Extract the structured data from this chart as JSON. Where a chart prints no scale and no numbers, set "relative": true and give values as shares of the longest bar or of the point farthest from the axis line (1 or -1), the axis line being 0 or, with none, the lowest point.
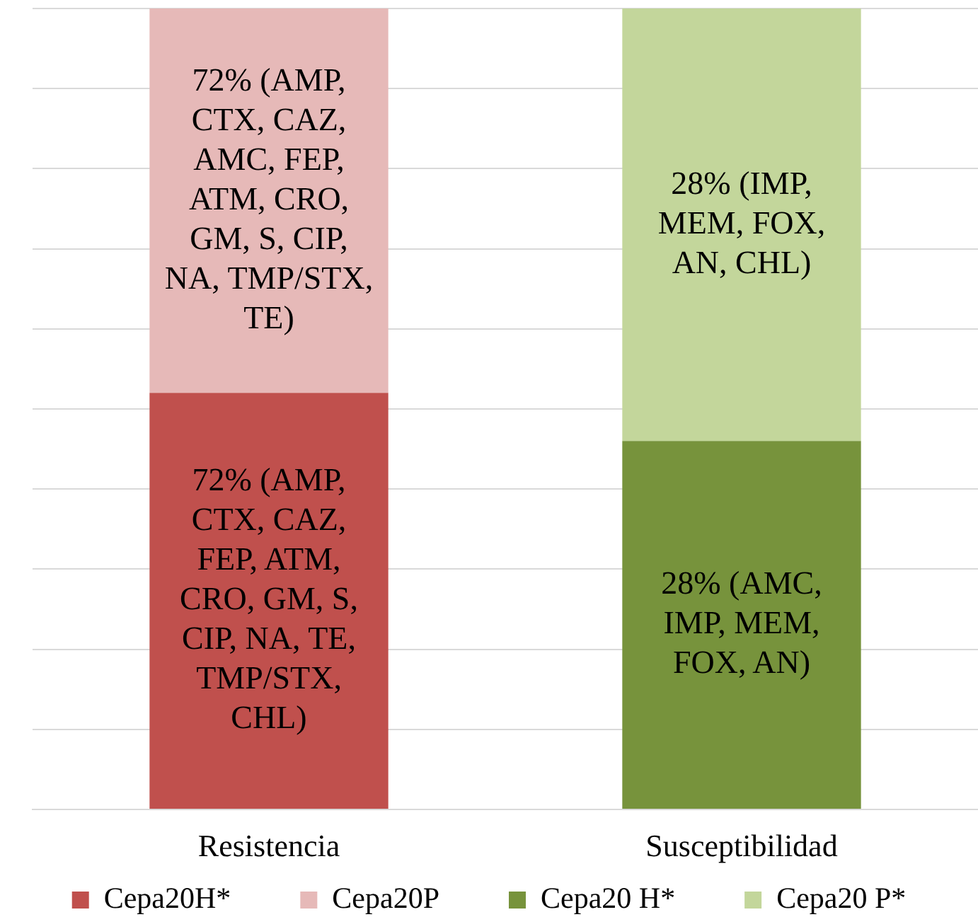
{
  "chart_data": {
    "type": "bar",
    "stacked": true,
    "relative": true,
    "categories": [
      "Resistencia",
      "Susceptibilidad"
    ],
    "series": [
      {
        "name": "Cepa20H*",
        "color": "#c0504d",
        "values": [
          0.52,
          null
        ]
      },
      {
        "name": "Cepa20P",
        "color": "#e6b9b8",
        "values": [
          0.48,
          null
        ]
      },
      {
        "name": "Cepa20 H*",
        "color": "#77933c",
        "values": [
          null,
          0.46
        ]
      },
      {
        "name": "Cepa20 P*",
        "color": "#c3d69b",
        "values": [
          null,
          0.54
        ]
      }
    ],
    "annotations": [
      "72% (AMP, CTX, CAZ, FEP, ATM, CRO, GM, S, CIP, NA, TE, TMP/STX, CHL)",
      "72% (AMP, CTX, CAZ, AMC, FEP, ATM, CRO, GM, S, CIP, NA, TMP/STX, TE)",
      "28% (AMC, IMP, MEM, FOX, AN)",
      "28% (IMP, MEM, FOX, AN, CHL)"
    ],
    "grid": "y",
    "legend": "bottom"
  }
}
